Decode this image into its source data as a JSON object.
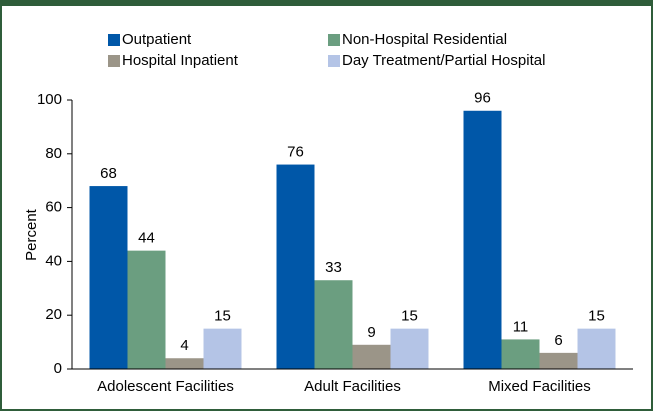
{
  "chart_data": {
    "type": "bar",
    "categories": [
      "Adolescent Facilities",
      "Adult Facilities",
      "Mixed Facilities"
    ],
    "series": [
      {
        "name": "Outpatient",
        "color": "#0057a8",
        "values": [
          68,
          76,
          96
        ]
      },
      {
        "name": "Non-Hospital Residential",
        "color": "#6b9e80",
        "values": [
          44,
          33,
          11
        ]
      },
      {
        "name": "Hospital Inpatient",
        "color": "#9b9588",
        "values": [
          4,
          9,
          6
        ]
      },
      {
        "name": "Day Treatment/Partial Hospital",
        "color": "#b4c4e6",
        "values": [
          15,
          15,
          15
        ]
      }
    ],
    "ylabel": "Percent",
    "ylim": [
      0,
      100
    ],
    "yticks": [
      0,
      20,
      40,
      60,
      80,
      100
    ],
    "grid": false,
    "legend": "top"
  }
}
